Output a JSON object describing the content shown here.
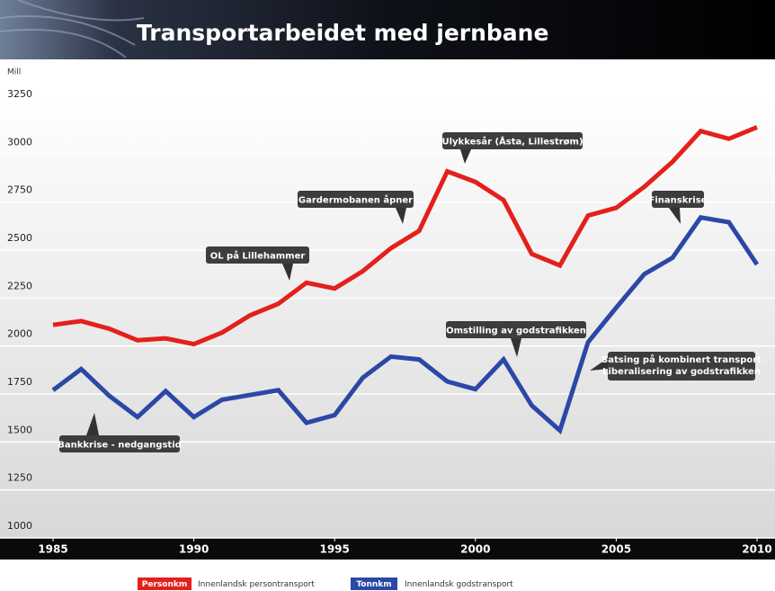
{
  "chart_data": {
    "type": "line",
    "title": "Transportarbeidet med jernbane",
    "y_label": "Mill",
    "x": [
      1985,
      1986,
      1987,
      1988,
      1989,
      1990,
      1991,
      1992,
      1993,
      1994,
      1995,
      1996,
      1997,
      1998,
      1999,
      2000,
      2001,
      2002,
      2003,
      2004,
      2005,
      2006,
      2007,
      2008,
      2009,
      2010
    ],
    "series": [
      {
        "name": "Personkm",
        "description": "Innenlandsk persontransport",
        "color": "#e3201b",
        "values": [
          2110,
          2130,
          2090,
          2030,
          2040,
          2010,
          2070,
          2160,
          2220,
          2330,
          2300,
          2390,
          2510,
          2600,
          2910,
          2855,
          2760,
          2480,
          2420,
          2680,
          2720,
          2830,
          2960,
          3120,
          3080,
          3140
        ]
      },
      {
        "name": "Tonnkm",
        "description": "Innenlandsk godstransport",
        "color": "#2b48a6",
        "values": [
          1770,
          1880,
          1740,
          1630,
          1765,
          1630,
          1720,
          1745,
          1770,
          1600,
          1640,
          1835,
          1945,
          1930,
          1815,
          1775,
          1930,
          1690,
          1560,
          2020,
          2200,
          2375,
          2460,
          2670,
          2645,
          2425
        ]
      }
    ],
    "xlim": [
      1985,
      2010
    ],
    "xticks": [
      1985,
      1990,
      1995,
      2000,
      2005,
      2010
    ],
    "ylim": [
      1000,
      3250
    ],
    "yticks": [
      1000,
      1250,
      1500,
      1750,
      2000,
      2250,
      2500,
      2750,
      3000,
      3250
    ],
    "grid": true,
    "annotations": [
      {
        "lines": [
          "Bankkrise - nedgangstid"
        ]
      },
      {
        "lines": [
          "OL på Lillehammer"
        ]
      },
      {
        "lines": [
          "Gardermobanen åpner"
        ]
      },
      {
        "lines": [
          "Ulykkesår (Åsta, Lillestrøm)"
        ]
      },
      {
        "lines": [
          "Omstilling av godstrafikken"
        ]
      },
      {
        "lines": [
          "Satsing på kombinert transport",
          "Liberalisering av godstrafikken"
        ]
      },
      {
        "lines": [
          "Finanskrise"
        ]
      }
    ]
  }
}
